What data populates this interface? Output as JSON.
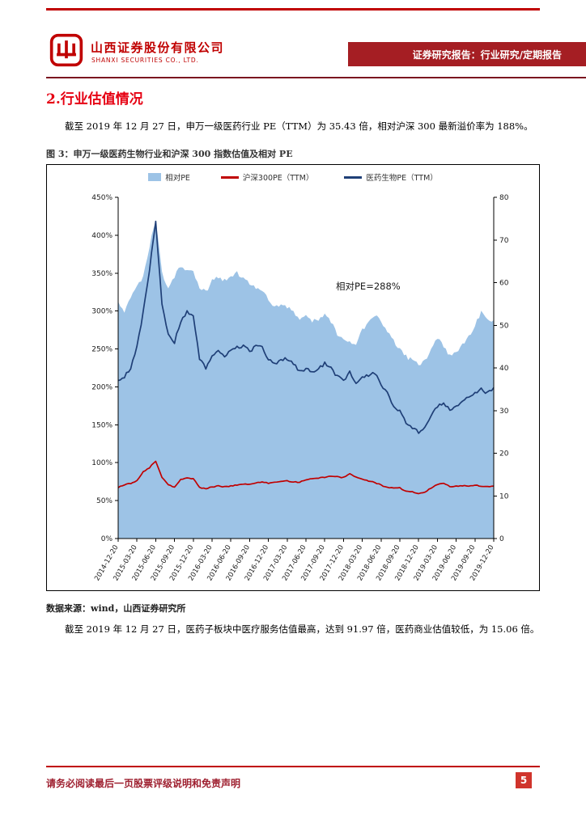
{
  "colors": {
    "brand_red": "#C00000",
    "banner_bg": "#A51E23",
    "heading_red": "#E60012",
    "rule_dark": "#7A1420",
    "footer_red": "#9E1F2F",
    "page_box": "#D0342C",
    "area_blue": "#9DC3E6",
    "line_red": "#C00000",
    "line_navy": "#1F3F77"
  },
  "header": {
    "company_cn": "山西证券股份有限公司",
    "company_en": "SHANXI SECURITIES CO., LTD.",
    "banner": "证券研究报告：行业研究/定期报告"
  },
  "section": {
    "title": "2.行业估值情况"
  },
  "paragraphs": {
    "p1": "截至 2019 年 12 月 27 日，申万一级医药行业 PE（TTM）为 35.43 倍，相对沪深 300 最新溢价率为 188%。",
    "p2": "截至 2019 年 12 月 27 日，医药子板块中医疗服务估值最高，达到 91.97 倍，医药商业估值较低，为 15.06 倍。"
  },
  "figure": {
    "caption": "图 3：申万一级医药生物行业和沪深 300 指数估值及相对 PE"
  },
  "source": "数据来源：wind，山西证券研究所",
  "footer": {
    "disclaimer": "请务必阅读最后一页股票评级说明和免责声明",
    "page_number": "5"
  },
  "chart_data": {
    "type": "line",
    "title": "申万一级医药生物行业和沪深300指数估值及相对PE",
    "legend": [
      {
        "label": "相对PE",
        "type": "area",
        "color": "#9DC3E6"
      },
      {
        "label": "沪深300PE（TTM）",
        "type": "line",
        "color": "#C00000"
      },
      {
        "label": "医药生物PE（TTM）",
        "type": "line",
        "color": "#1F3F77"
      }
    ],
    "annotation": {
      "text": "相对PE=288%"
    },
    "left_axis": {
      "min": 0,
      "max": 450,
      "ticks": [
        "0%",
        "50%",
        "100%",
        "150%",
        "200%",
        "250%",
        "300%",
        "350%",
        "400%",
        "450%"
      ]
    },
    "right_axis": {
      "min": 0,
      "max": 80,
      "ticks": [
        "0",
        "10",
        "20",
        "30",
        "40",
        "50",
        "60",
        "70",
        "80"
      ]
    },
    "x_tick_every": 3,
    "x_tick_labels": [
      "2014-12-20",
      "2015-03-20",
      "2015-06-20",
      "2015-09-20",
      "2015-12-20",
      "2016-03-20",
      "2016-06-20",
      "2016-09-20",
      "2016-12-20",
      "2017-03-20",
      "2017-06-20",
      "2017-09-20",
      "2017-12-20",
      "2018-03-20",
      "2018-06-20",
      "2018-09-20",
      "2018-12-20",
      "2019-03-20",
      "2019-06-20",
      "2019-09-20",
      "2019-12-20"
    ],
    "series": [
      {
        "name": "相对PE",
        "axis": "left",
        "type": "area",
        "color": "#9DC3E6",
        "values": [
          310,
          300,
          315,
          335,
          345,
          385,
          420,
          350,
          330,
          345,
          360,
          355,
          350,
          330,
          325,
          340,
          345,
          340,
          345,
          350,
          345,
          335,
          330,
          325,
          315,
          305,
          310,
          305,
          300,
          290,
          295,
          285,
          290,
          295,
          285,
          270,
          265,
          260,
          255,
          275,
          285,
          295,
          285,
          275,
          260,
          250,
          240,
          235,
          230,
          235,
          250,
          265,
          255,
          240,
          245,
          255,
          265,
          280,
          300,
          290,
          288
        ]
      },
      {
        "name": "沪深300PE（TTM）",
        "axis": "right",
        "type": "line",
        "color": "#C00000",
        "values": [
          12.0,
          12.6,
          12.9,
          13.6,
          15.6,
          16.6,
          18.2,
          14.4,
          12.6,
          12.1,
          13.8,
          14.2,
          14.0,
          12.0,
          11.6,
          12.1,
          12.3,
          12.1,
          12.3,
          12.6,
          12.8,
          12.7,
          13.0,
          13.3,
          13.0,
          13.2,
          13.4,
          13.5,
          13.3,
          13.2,
          13.8,
          14.0,
          14.2,
          14.4,
          14.6,
          14.5,
          14.3,
          15.3,
          14.4,
          14.0,
          13.5,
          13.2,
          12.5,
          12.0,
          11.8,
          11.9,
          11.0,
          10.9,
          10.6,
          10.9,
          11.9,
          12.6,
          13.0,
          12.2,
          12.3,
          12.4,
          12.2,
          12.5,
          12.3,
          12.2,
          12.3
        ]
      },
      {
        "name": "医药生物PE（TTM）",
        "axis": "right",
        "type": "line",
        "color": "#1F3F77",
        "values": [
          37,
          38,
          40,
          45,
          53,
          63,
          74,
          55,
          48,
          46,
          51,
          53,
          52,
          42,
          40,
          43,
          44,
          43,
          44,
          45,
          45,
          44,
          45,
          45,
          42,
          41,
          42,
          42,
          41,
          39,
          40,
          39,
          40,
          41,
          40,
          38,
          37,
          39,
          36,
          38,
          38,
          39,
          36,
          34,
          31,
          30,
          27,
          26,
          25,
          26,
          29,
          31,
          32,
          30,
          31,
          32,
          33,
          34,
          35,
          34,
          35.4
        ]
      }
    ]
  }
}
